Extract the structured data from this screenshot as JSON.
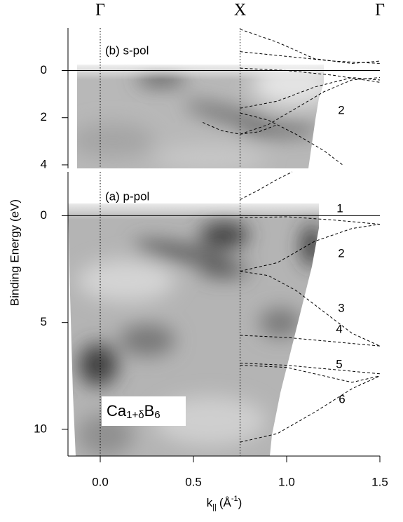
{
  "chart_data": [
    {
      "type": "line",
      "panel_label": "(b) s-pol",
      "xlim": [
        -0.173,
        1.5
      ],
      "ylim": [
        4.15,
        -1.8
      ],
      "yticks": [
        0,
        2,
        4
      ],
      "x2ticks": [
        {
          "value": 0,
          "label": "Γ"
        },
        {
          "value": 0.75,
          "label": "X"
        },
        {
          "value": 1.5,
          "label": "Γ"
        }
      ],
      "vlines": [
        0,
        0.75
      ],
      "fermi_level": 0,
      "line_color": "#000000",
      "annotations": [
        "2"
      ],
      "series": [
        {
          "x": [
            0.75,
            0.95,
            1.15,
            1.35,
            1.5
          ],
          "values": [
            -1.75,
            -1.2,
            -0.5,
            -0.3,
            -0.4
          ]
        },
        {
          "x": [
            0.75,
            1.0,
            1.25,
            1.5
          ],
          "values": [
            -0.8,
            -0.6,
            -0.4,
            -0.3
          ]
        },
        {
          "x": [
            0.75,
            1.0,
            1.25,
            1.5
          ],
          "values": [
            -0.1,
            0.0,
            0.2,
            0.5
          ]
        },
        {
          "x": [
            0.75,
            0.95,
            1.15,
            1.35,
            1.5
          ],
          "values": [
            1.6,
            1.3,
            0.7,
            0.3,
            0.4
          ]
        },
        {
          "x": [
            0.75,
            0.9,
            1.05,
            1.2,
            1.35,
            1.5
          ],
          "values": [
            2.7,
            2.3,
            1.6,
            0.9,
            0.4,
            0.3
          ]
        },
        {
          "x": [
            0.75,
            0.9,
            1.05,
            1.2,
            1.3
          ],
          "values": [
            1.8,
            2.1,
            2.7,
            3.4,
            4.0
          ]
        },
        {
          "x": [
            0.55,
            0.65,
            0.75,
            0.85,
            0.95
          ],
          "values": [
            2.2,
            2.55,
            2.7,
            2.6,
            2.3
          ]
        }
      ]
    },
    {
      "type": "line",
      "panel_label": "(a) p-pol",
      "y_label": "Binding Energy (eV)",
      "x_label": {
        "main": "k",
        "sub": "||",
        "open": "(Å",
        "sup": "-1",
        "close": ")"
      },
      "sample_label": {
        "a": "Ca",
        "a_sub": "1+δ",
        "b": "B",
        "b_sub": "6"
      },
      "xlim": [
        -0.173,
        1.5
      ],
      "ylim": [
        11.25,
        -2.05
      ],
      "yticks": [
        0,
        5,
        10
      ],
      "xticks": [
        {
          "value": 0,
          "label": "0.0"
        },
        0.5,
        {
          "value": 1,
          "label": "1.0"
        },
        1.5
      ],
      "vlines": [
        0,
        0.75
      ],
      "fermi_level": 0,
      "line_color": "#000000",
      "annotations": [
        "1",
        "2",
        "3",
        "4",
        "5",
        "6"
      ],
      "series": [
        {
          "x": [
            0.75,
            0.85,
            0.95,
            1.03
          ],
          "values": [
            -0.75,
            -1.2,
            -1.7,
            -2.05
          ]
        },
        {
          "x": [
            0.75,
            1.0,
            1.25,
            1.5
          ],
          "values": [
            0.1,
            0.05,
            0.2,
            0.4
          ]
        },
        {
          "x": [
            0.75,
            0.95,
            1.15,
            1.35,
            1.5
          ],
          "values": [
            2.6,
            2.2,
            1.2,
            0.6,
            0.4
          ]
        },
        {
          "x": [
            0.75,
            0.9,
            1.05,
            1.2,
            1.35,
            1.5
          ],
          "values": [
            2.6,
            2.8,
            3.5,
            4.5,
            5.5,
            6.1
          ]
        },
        {
          "x": [
            0.75,
            1.0,
            1.25,
            1.5
          ],
          "values": [
            5.6,
            5.7,
            5.9,
            6.1
          ]
        },
        {
          "x": [
            0.75,
            1.0,
            1.25,
            1.5
          ],
          "values": [
            6.9,
            7.0,
            7.2,
            7.4
          ]
        },
        {
          "x": [
            0.75,
            1.0,
            1.2,
            1.35,
            1.5
          ],
          "values": [
            7.0,
            7.1,
            7.5,
            7.8,
            7.5
          ]
        },
        {
          "x": [
            0.75,
            0.95,
            1.15,
            1.35,
            1.5
          ],
          "values": [
            10.6,
            10.2,
            9.2,
            8.1,
            7.5
          ]
        }
      ]
    }
  ]
}
